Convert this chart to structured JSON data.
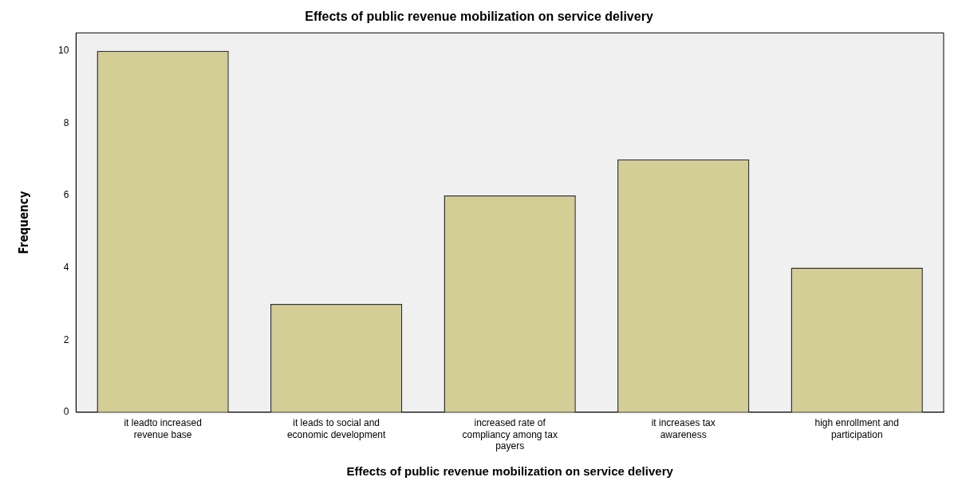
{
  "chart_data": {
    "type": "bar",
    "title": "Effects of public revenue mobilization on service delivery",
    "xlabel": "Effects of public revenue mobilization on service delivery",
    "ylabel": "Frequency",
    "categories": [
      "it leadto increased revenue base",
      "it leads to social and economic development",
      "increased rate of compliancy among tax payers",
      "it increases tax awareness",
      "high enrollment and participation"
    ],
    "values": [
      10,
      3,
      6,
      7,
      4
    ],
    "color": "#d3cd96",
    "ylim": [
      0,
      10.5
    ],
    "yticks": [
      0,
      2,
      4,
      6,
      8,
      10
    ],
    "grid": false,
    "legend": false
  }
}
